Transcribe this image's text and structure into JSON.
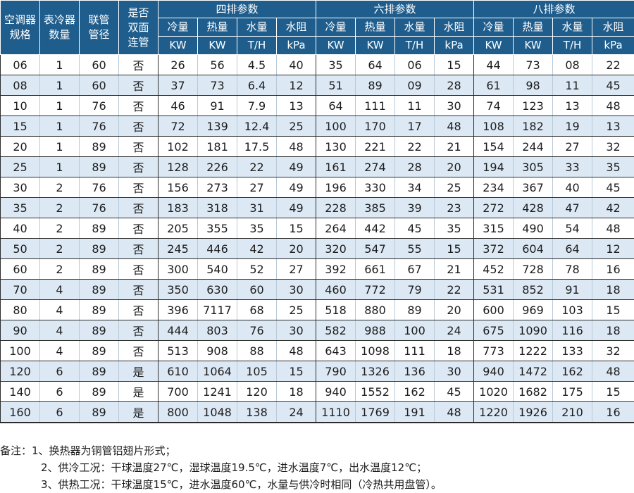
{
  "header": {
    "row_labels": [
      "空调器\n规格",
      "表冷器\n数量",
      "联管\n管径",
      "是否\n双面\n连管"
    ],
    "groups": [
      "四排参数",
      "六排参数",
      "八排参数"
    ],
    "metrics": [
      "冷量",
      "热量",
      "水量",
      "水阻"
    ],
    "units": [
      "KW",
      "KW",
      "T/H",
      "kPa"
    ]
  },
  "rows": [
    [
      "06",
      "1",
      "60",
      "否",
      "26",
      "56",
      "4.5",
      "40",
      "35",
      "64",
      "06",
      "15",
      "44",
      "73",
      "08",
      "22"
    ],
    [
      "08",
      "1",
      "60",
      "否",
      "37",
      "73",
      "6.4",
      "12",
      "51",
      "89",
      "09",
      "28",
      "61",
      "98",
      "11",
      "45"
    ],
    [
      "10",
      "1",
      "76",
      "否",
      "46",
      "91",
      "7.9",
      "13",
      "64",
      "111",
      "11",
      "30",
      "74",
      "123",
      "13",
      "48"
    ],
    [
      "15",
      "1",
      "76",
      "否",
      "72",
      "139",
      "12.4",
      "25",
      "100",
      "170",
      "17",
      "48",
      "108",
      "182",
      "19",
      "13"
    ],
    [
      "20",
      "1",
      "89",
      "否",
      "102",
      "181",
      "17.5",
      "48",
      "130",
      "221",
      "22",
      "21",
      "154",
      "244",
      "27",
      "32"
    ],
    [
      "25",
      "1",
      "89",
      "否",
      "128",
      "226",
      "22",
      "49",
      "161",
      "274",
      "28",
      "20",
      "194",
      "305",
      "33",
      "35"
    ],
    [
      "30",
      "2",
      "76",
      "否",
      "156",
      "273",
      "27",
      "49",
      "196",
      "330",
      "34",
      "25",
      "234",
      "367",
      "40",
      "45"
    ],
    [
      "35",
      "2",
      "76",
      "否",
      "183",
      "318",
      "31",
      "49",
      "228",
      "385",
      "39",
      "23",
      "272",
      "428",
      "47",
      "42"
    ],
    [
      "40",
      "2",
      "89",
      "否",
      "205",
      "355",
      "35",
      "15",
      "264",
      "442",
      "45",
      "35",
      "315",
      "490",
      "54",
      "48"
    ],
    [
      "50",
      "2",
      "89",
      "否",
      "245",
      "446",
      "42",
      "20",
      "320",
      "547",
      "55",
      "15",
      "372",
      "604",
      "64",
      "12"
    ],
    [
      "60",
      "2",
      "89",
      "否",
      "300",
      "540",
      "52",
      "27",
      "392",
      "661",
      "67",
      "21",
      "452",
      "728",
      "78",
      "16"
    ],
    [
      "70",
      "4",
      "89",
      "否",
      "350",
      "630",
      "60",
      "30",
      "460",
      "772",
      "79",
      "22",
      "531",
      "852",
      "91",
      "18"
    ],
    [
      "80",
      "4",
      "89",
      "否",
      "396",
      "7117",
      "68",
      "25",
      "518",
      "880",
      "89",
      "20",
      "600",
      "969",
      "103",
      "15"
    ],
    [
      "90",
      "4",
      "89",
      "否",
      "444",
      "803",
      "76",
      "30",
      "582",
      "988",
      "100",
      "24",
      "675",
      "1090",
      "116",
      "18"
    ],
    [
      "100",
      "4",
      "89",
      "否",
      "513",
      "908",
      "88",
      "48",
      "643",
      "1098",
      "111",
      "18",
      "773",
      "1222",
      "133",
      "32"
    ],
    [
      "120",
      "6",
      "89",
      "是",
      "610",
      "1064",
      "105",
      "15",
      "790",
      "1326",
      "136",
      "30",
      "940",
      "1472",
      "162",
      "48"
    ],
    [
      "140",
      "6",
      "89",
      "是",
      "700",
      "1241",
      "120",
      "18",
      "940",
      "1552",
      "162",
      "45",
      "1020",
      "1682",
      "175",
      "15"
    ],
    [
      "160",
      "6",
      "89",
      "是",
      "800",
      "1048",
      "138",
      "24",
      "1110",
      "1769",
      "191",
      "48",
      "1220",
      "1926",
      "210",
      "16"
    ]
  ],
  "notes": [
    "备注：1、换热器为铜管铝翅片形式；",
    "2、供冷工况：干球温度27℃，湿球温度19.5℃，进水温度7℃，出水温度12℃；",
    "3、供热工况：干球温度15℃，进水温度60℃，水量与供冷时相同（冷热共用盘管）。"
  ],
  "colors": {
    "header_bg": "#1f5d8c",
    "header_text": "#ffffff",
    "alt_row": "#dce9f5"
  }
}
